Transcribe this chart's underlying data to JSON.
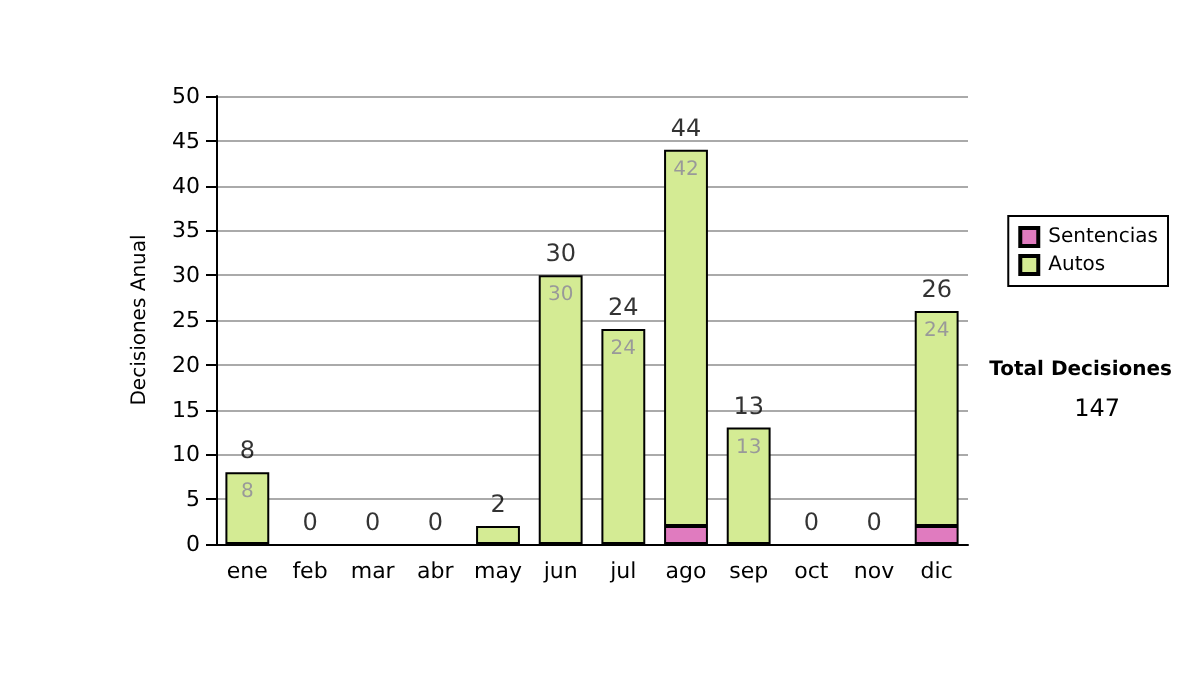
{
  "chart_data": {
    "type": "bar",
    "stacked": true,
    "ylabel": "Decisiones Anual",
    "categories": [
      "ene",
      "feb",
      "mar",
      "abr",
      "may",
      "jun",
      "jul",
      "ago",
      "sep",
      "oct",
      "nov",
      "dic"
    ],
    "series": [
      {
        "name": "Sentencias",
        "color": "#e07bbf",
        "values": [
          0,
          0,
          0,
          0,
          0,
          0,
          0,
          2,
          0,
          0,
          0,
          2
        ]
      },
      {
        "name": "Autos",
        "color": "#d4eb94",
        "values": [
          8,
          0,
          0,
          0,
          2,
          30,
          24,
          42,
          13,
          0,
          0,
          24
        ],
        "value_labels": [
          "8",
          null,
          null,
          null,
          null,
          "30",
          "24",
          "42",
          "13",
          null,
          null,
          "24"
        ]
      }
    ],
    "totals": [
      "8",
      "0",
      "0",
      "0",
      "2",
      "30",
      "24",
      "44",
      "13",
      "0",
      "0",
      "26"
    ],
    "ylim": [
      0,
      50
    ],
    "yticks": [
      0,
      5,
      10,
      15,
      20,
      25,
      30,
      35,
      40,
      45,
      50
    ],
    "grid": "y",
    "legend": "right",
    "annotations": [
      "Total Decisiones",
      "147"
    ]
  }
}
